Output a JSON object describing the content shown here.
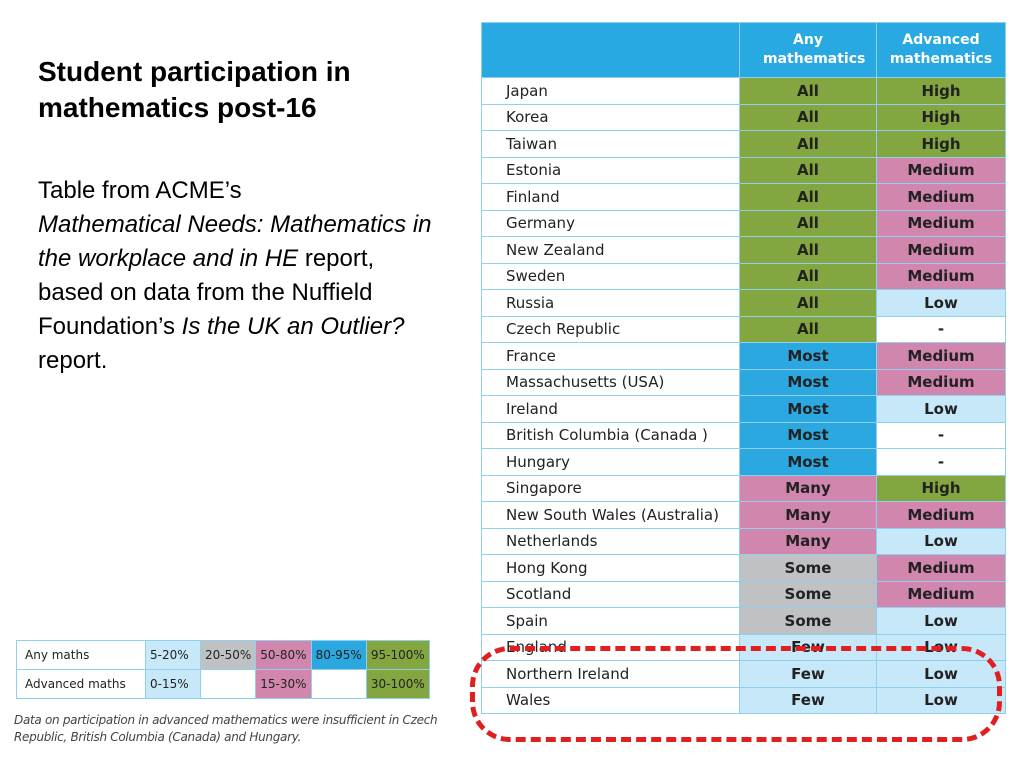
{
  "title": "Student participation in mathematics post-16",
  "source": {
    "line1": "Table from ACME’s",
    "italic1": "Mathematical Needs: Mathematics in the workplace and in HE",
    "after1": " report,",
    "line2": "based on data from the Nuffield Foundation’s ",
    "italic2": "Is the UK an Outlier?",
    "after2": " report."
  },
  "table": {
    "headers": [
      "",
      "Any mathematics",
      "Advanced mathematics"
    ],
    "rows": [
      {
        "country": "Japan",
        "any": "All",
        "adv": "High",
        "anyColor": "g",
        "advColor": "g"
      },
      {
        "country": "Korea",
        "any": "All",
        "adv": "High",
        "anyColor": "g",
        "advColor": "g"
      },
      {
        "country": "Taiwan",
        "any": "All",
        "adv": "High",
        "anyColor": "g",
        "advColor": "g"
      },
      {
        "country": "Estonia",
        "any": "All",
        "adv": "Medium",
        "anyColor": "g",
        "advColor": "p"
      },
      {
        "country": "Finland",
        "any": "All",
        "adv": "Medium",
        "anyColor": "g",
        "advColor": "p"
      },
      {
        "country": "Germany",
        "any": "All",
        "adv": "Medium",
        "anyColor": "g",
        "advColor": "p"
      },
      {
        "country": "New Zealand",
        "any": "All",
        "adv": "Medium",
        "anyColor": "g",
        "advColor": "p"
      },
      {
        "country": "Sweden",
        "any": "All",
        "adv": "Medium",
        "anyColor": "g",
        "advColor": "p"
      },
      {
        "country": "Russia",
        "any": "All",
        "adv": "Low",
        "anyColor": "g",
        "advColor": "l"
      },
      {
        "country": "Czech Republic",
        "any": "All",
        "adv": "-",
        "anyColor": "g",
        "advColor": "w"
      },
      {
        "country": "France",
        "any": "Most",
        "adv": "Medium",
        "anyColor": "b",
        "advColor": "p"
      },
      {
        "country": "Massachusetts (USA)",
        "any": "Most",
        "adv": "Medium",
        "anyColor": "b",
        "advColor": "p"
      },
      {
        "country": "Ireland",
        "any": "Most",
        "adv": "Low",
        "anyColor": "b",
        "advColor": "l"
      },
      {
        "country": "British Columbia (Canada )",
        "any": "Most",
        "adv": "-",
        "anyColor": "b",
        "advColor": "w"
      },
      {
        "country": "Hungary",
        "any": "Most",
        "adv": "-",
        "anyColor": "b",
        "advColor": "w"
      },
      {
        "country": "Singapore",
        "any": "Many",
        "adv": "High",
        "anyColor": "p",
        "advColor": "g"
      },
      {
        "country": "New South Wales (Australia)",
        "any": "Many",
        "adv": "Medium",
        "anyColor": "p",
        "advColor": "p"
      },
      {
        "country": "Netherlands",
        "any": "Many",
        "adv": "Low",
        "anyColor": "p",
        "advColor": "l"
      },
      {
        "country": "Hong Kong",
        "any": "Some",
        "adv": "Medium",
        "anyColor": "s",
        "advColor": "p"
      },
      {
        "country": "Scotland",
        "any": "Some",
        "adv": "Medium",
        "anyColor": "s",
        "advColor": "p"
      },
      {
        "country": "Spain",
        "any": "Some",
        "adv": "Low",
        "anyColor": "s",
        "advColor": "l"
      },
      {
        "country": "England",
        "any": "Few",
        "adv": "Low",
        "anyColor": "l",
        "advColor": "l"
      },
      {
        "country": "Northern Ireland",
        "any": "Few",
        "adv": "Low",
        "anyColor": "l",
        "advColor": "l"
      },
      {
        "country": "Wales",
        "any": "Few",
        "adv": "Low",
        "anyColor": "l",
        "advColor": "l"
      }
    ]
  },
  "legend": {
    "rows": [
      {
        "label": "Any maths",
        "cells": [
          {
            "text": "5-20%",
            "color": "l"
          },
          {
            "text": "20-50%",
            "color": "s"
          },
          {
            "text": "50-80%",
            "color": "p"
          },
          {
            "text": "80-95%",
            "color": "b"
          },
          {
            "text": "95-100%",
            "color": "g"
          }
        ]
      },
      {
        "label": "Advanced maths",
        "cells": [
          {
            "text": "0-15%",
            "color": "l"
          },
          {
            "text": "",
            "color": "w"
          },
          {
            "text": "15-30%",
            "color": "p"
          },
          {
            "text": "",
            "color": "w"
          },
          {
            "text": "30-100%",
            "color": "g"
          }
        ]
      }
    ]
  },
  "footnote": "Data on participation in advanced mathematics were insufficient in Czech Republic, British Columbia (Canada) and Hungary.",
  "colors": {
    "g": "#83a640",
    "b": "#2ba8e0",
    "p": "#d086ad",
    "s": "#c0c1c3",
    "l": "#c7e8f9",
    "w": "#ffffff",
    "header": "#29a9e1",
    "highlight": "#e02020"
  }
}
